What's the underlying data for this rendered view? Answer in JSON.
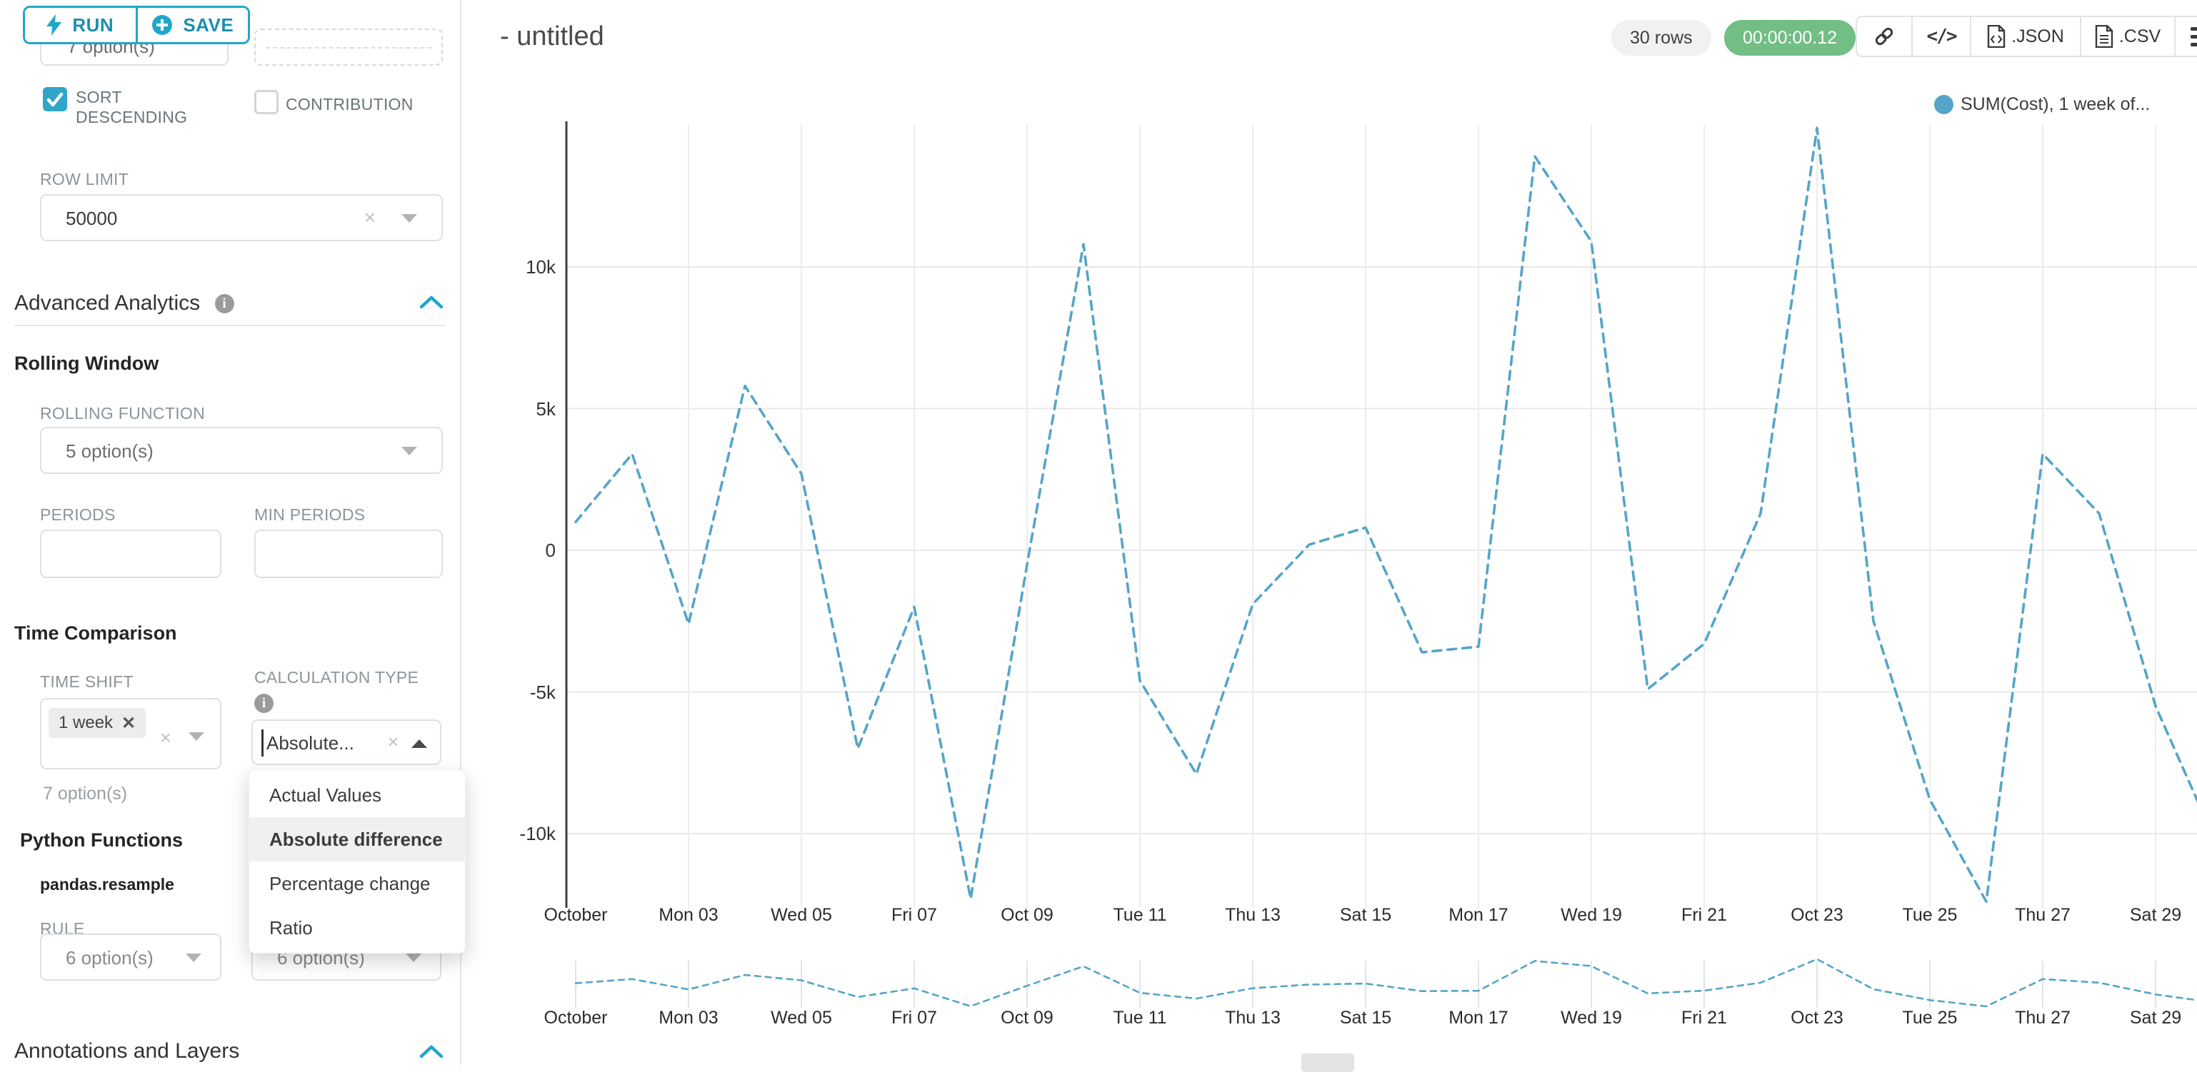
{
  "colors": {
    "accent": "#1FA7C9",
    "accent_text": "#1B8FAE",
    "checkbox_teal": "#2FA6C8",
    "timer_green": "#72BE85",
    "series_blue": "#55A5C8"
  },
  "sidebar": {
    "run_label": "RUN",
    "save_label": "SAVE",
    "obscured_select_text": "7 option(s)",
    "sort_descending_label": "SORT DESCENDING",
    "contribution_label": "CONTRIBUTION",
    "row_limit": {
      "label": "ROW LIMIT",
      "value": "50000"
    },
    "advanced_analytics_title": "Advanced Analytics",
    "rolling_window": {
      "title": "Rolling Window",
      "rolling_function_label": "ROLLING FUNCTION",
      "rolling_function_value": "5 option(s)",
      "periods_label": "PERIODS",
      "min_periods_label": "MIN PERIODS"
    },
    "time_comparison": {
      "title": "Time Comparison",
      "time_shift_label": "TIME SHIFT",
      "time_shift_tag": "1 week",
      "time_shift_hint": "7 option(s)",
      "calculation_type_label": "CALCULATION TYPE",
      "calculation_type_value": "Absolute...",
      "dropdown_options": [
        "Actual Values",
        "Absolute difference",
        "Percentage change",
        "Ratio"
      ],
      "dropdown_selected_index": 1
    },
    "python_functions": {
      "title": "Python Functions",
      "subtitle": "pandas.resample",
      "rule_label": "RULE",
      "rule_value_1": "6 option(s)",
      "rule_value_2": "6 option(s)"
    },
    "annotations_title": "Annotations and Layers"
  },
  "header": {
    "title": "- untitled",
    "rows_badge": "30 rows",
    "timer": "00:00:00.12",
    "json_label": ".JSON",
    "csv_label": ".CSV"
  },
  "legend": {
    "label": "SUM(Cost), 1 week of..."
  },
  "chart_data": {
    "type": "line",
    "title": "",
    "xlabel": "",
    "ylabel": "",
    "grid": true,
    "legend_position": "top-right",
    "legend_entries": [
      "SUM(Cost), 1 week of..."
    ],
    "x_days_of_october": [
      1,
      2,
      3,
      4,
      5,
      6,
      7,
      8,
      9,
      10,
      11,
      12,
      13,
      14,
      15,
      16,
      17,
      18,
      19,
      20,
      21,
      22,
      23,
      24,
      25,
      26,
      27,
      28,
      29,
      30
    ],
    "series": [
      {
        "name": "SUM(Cost), 1 week offset",
        "style": "dashed",
        "color": "#55A5C8",
        "values": [
          1000,
          3400,
          -2600,
          5800,
          2700,
          -7000,
          -2000,
          -12300,
          -500,
          10800,
          -4600,
          -7900,
          -1900,
          200,
          800,
          -3600,
          -3400,
          13900,
          10900,
          -4900,
          -3300,
          1300,
          14900,
          -2500,
          -8800,
          -12400,
          3400,
          1300,
          -5500,
          -10000
        ]
      }
    ],
    "x_tick_labels": [
      "October",
      "Mon 03",
      "Wed 05",
      "Fri 07",
      "Oct 09",
      "Tue 11",
      "Thu 13",
      "Sat 15",
      "Mon 17",
      "Wed 19",
      "Fri 21",
      "Oct 23",
      "Tue 25",
      "Thu 27",
      "Sat 29"
    ],
    "y_tick_labels": [
      "10k",
      "5k",
      "0",
      "-5k",
      "-10k"
    ],
    "y_tick_values": [
      10000,
      5000,
      0,
      -5000,
      -10000
    ],
    "ylim": [
      -12600,
      15100
    ],
    "mini_preview_chart": true
  }
}
